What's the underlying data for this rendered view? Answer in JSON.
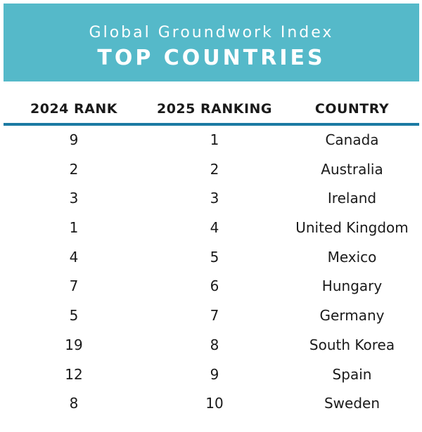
{
  "banner": {
    "subtitle": "Global Groundwork Index",
    "title": "TOP COUNTRIES",
    "background_color": "#55b9c9"
  },
  "table": {
    "headers": [
      "2024 RANK",
      "2025 RANKING",
      "COUNTRY"
    ],
    "rule_color": "#1b7aa3",
    "rows": [
      {
        "rank_2024": "9",
        "rank_2025": "1",
        "country": "Canada"
      },
      {
        "rank_2024": "2",
        "rank_2025": "2",
        "country": "Australia"
      },
      {
        "rank_2024": "3",
        "rank_2025": "3",
        "country": "Ireland"
      },
      {
        "rank_2024": "1",
        "rank_2025": "4",
        "country": "United Kingdom"
      },
      {
        "rank_2024": "4",
        "rank_2025": "5",
        "country": "Mexico"
      },
      {
        "rank_2024": "7",
        "rank_2025": "6",
        "country": "Hungary"
      },
      {
        "rank_2024": "5",
        "rank_2025": "7",
        "country": "Germany"
      },
      {
        "rank_2024": "19",
        "rank_2025": "8",
        "country": "South Korea"
      },
      {
        "rank_2024": "12",
        "rank_2025": "9",
        "country": "Spain"
      },
      {
        "rank_2024": "8",
        "rank_2025": "10",
        "country": "Sweden"
      }
    ]
  }
}
